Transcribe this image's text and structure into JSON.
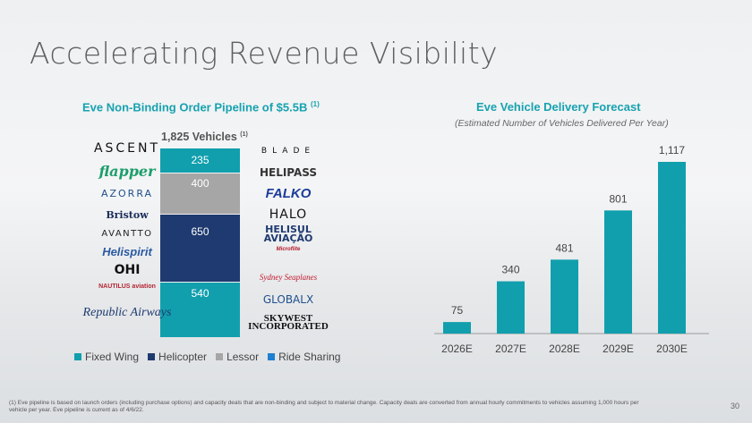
{
  "title": "Accelerating Revenue Visibility",
  "left": {
    "title": "Eve Non-Binding Order Pipeline of $5.5B",
    "title_ref": "(1)",
    "vehicles": "1,825 Vehicles",
    "vehicles_ref": "(1)",
    "segments": [
      {
        "name": "Ride Sharing",
        "label": "235",
        "value": 235,
        "color": "#119fad"
      },
      {
        "name": "Lessor",
        "label": "400",
        "value": 400,
        "color": "#a6a6a6"
      },
      {
        "name": "Helicopter",
        "label": "650",
        "value": 650,
        "color": "#1f3a70"
      },
      {
        "name": "Fixed Wing",
        "label": "540",
        "value": 540,
        "color": "#119fad"
      }
    ],
    "logos_left": [
      "ASCENT",
      "flapper",
      "AZORRA",
      "Bristow",
      "AVANTTO",
      "Helispirit",
      "OHI",
      "NAUTILUS aviation",
      "Republic Airways"
    ],
    "logos_right": [
      "BLADE",
      "HELIPASS",
      "FALKO",
      "HALO",
      "HELISUL AVIAÇÃO",
      "Microflite",
      "Sydney Seaplanes",
      "GLOBALX",
      "SKYWEST INCORPORATED"
    ],
    "legend": [
      {
        "label": "Fixed Wing",
        "color": "#119fad"
      },
      {
        "label": "Helicopter",
        "color": "#1f3a70"
      },
      {
        "label": "Lessor",
        "color": "#a6a6a6"
      },
      {
        "label": "Ride Sharing",
        "color": "#1f7fd0"
      }
    ]
  },
  "chart_data": {
    "type": "bar",
    "title": "Eve Vehicle Delivery Forecast",
    "subtitle": "(Estimated Number of Vehicles Delivered Per Year)",
    "categories": [
      "2026E",
      "2027E",
      "2028E",
      "2029E",
      "2030E"
    ],
    "values": [
      75,
      340,
      481,
      801,
      1117
    ],
    "value_labels": [
      "75",
      "340",
      "481",
      "801",
      "1,117"
    ],
    "color": "#119fad",
    "ylim": [
      0,
      1117
    ]
  },
  "footnote": "(1) Eve pipeline is based on launch orders (including purchase options) and capacity deals that are non-binding and subject to material change. Capacity deals are converted from annual hourly commitments to vehicles assuming 1,000 hours per vehicle per year. Eve pipeline is current as of 4/6/22.",
  "page_number": "30"
}
